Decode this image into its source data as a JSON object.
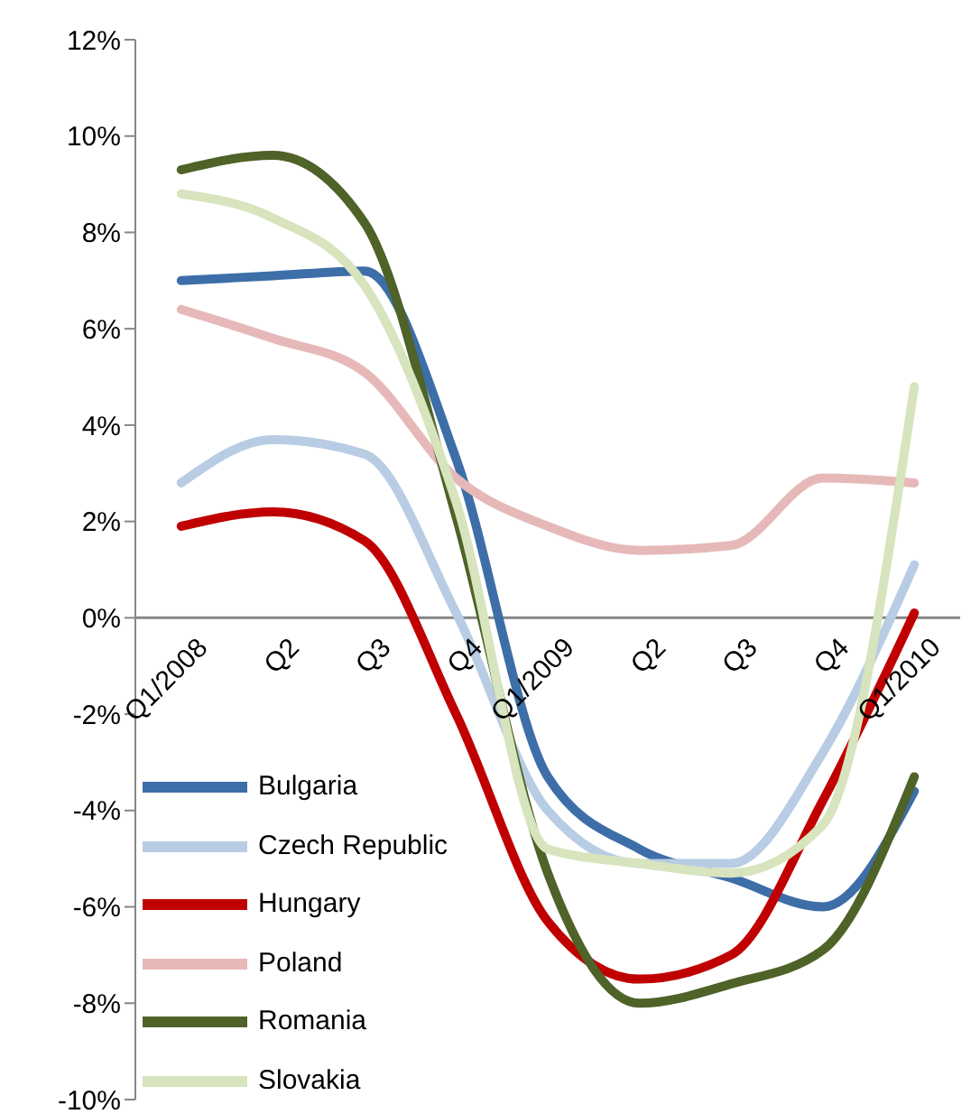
{
  "chart_data": {
    "type": "line",
    "categories": [
      "Q1/2008",
      "Q2",
      "Q3",
      "Q4",
      "Q1/2009",
      "Q2",
      "Q3",
      "Q4",
      "Q1/2010"
    ],
    "series": [
      {
        "name": "Bulgaria",
        "color": "#3d6ea8",
        "values": [
          7.0,
          7.1,
          7.2,
          3.3,
          -3.3,
          -4.8,
          -5.4,
          -6.0,
          -3.6
        ]
      },
      {
        "name": "Czech Republic",
        "color": "#b8cce4",
        "values": [
          2.8,
          3.7,
          3.4,
          0.1,
          -4.0,
          -5.1,
          -5.1,
          -2.8,
          1.1
        ]
      },
      {
        "name": "Hungary",
        "color": "#c00000",
        "values": [
          1.9,
          2.2,
          1.6,
          -2.0,
          -6.3,
          -7.5,
          -7.0,
          -3.8,
          0.1
        ]
      },
      {
        "name": "Poland",
        "color": "#e6b9b8",
        "values": [
          6.4,
          5.8,
          5.1,
          2.9,
          1.9,
          1.4,
          1.5,
          2.9,
          2.8
        ]
      },
      {
        "name": "Romania",
        "color": "#4f6228",
        "values": [
          9.3,
          9.6,
          8.2,
          2.1,
          -5.3,
          -8.0,
          -7.6,
          -6.9,
          -3.3
        ]
      },
      {
        "name": "Slovakia",
        "color": "#d7e4bd",
        "values": [
          8.8,
          8.3,
          6.9,
          2.4,
          -4.8,
          -5.1,
          -5.3,
          -4.3,
          4.8
        ]
      }
    ],
    "ylim": [
      -10,
      12
    ],
    "yticks": [
      {
        "value": -10,
        "label": "-10%"
      },
      {
        "value": -8,
        "label": "-8%"
      },
      {
        "value": -6,
        "label": "-6%"
      },
      {
        "value": -4,
        "label": "-4%"
      },
      {
        "value": -2,
        "label": "-2%"
      },
      {
        "value": 0,
        "label": "0%"
      },
      {
        "value": 2,
        "label": "2%"
      },
      {
        "value": 4,
        "label": "4%"
      },
      {
        "value": 6,
        "label": "6%"
      },
      {
        "value": 8,
        "label": "8%"
      },
      {
        "value": 10,
        "label": "10%"
      },
      {
        "value": 12,
        "label": "12%"
      }
    ],
    "legend": "bottom left",
    "marker": "none",
    "line_style": "solid"
  }
}
